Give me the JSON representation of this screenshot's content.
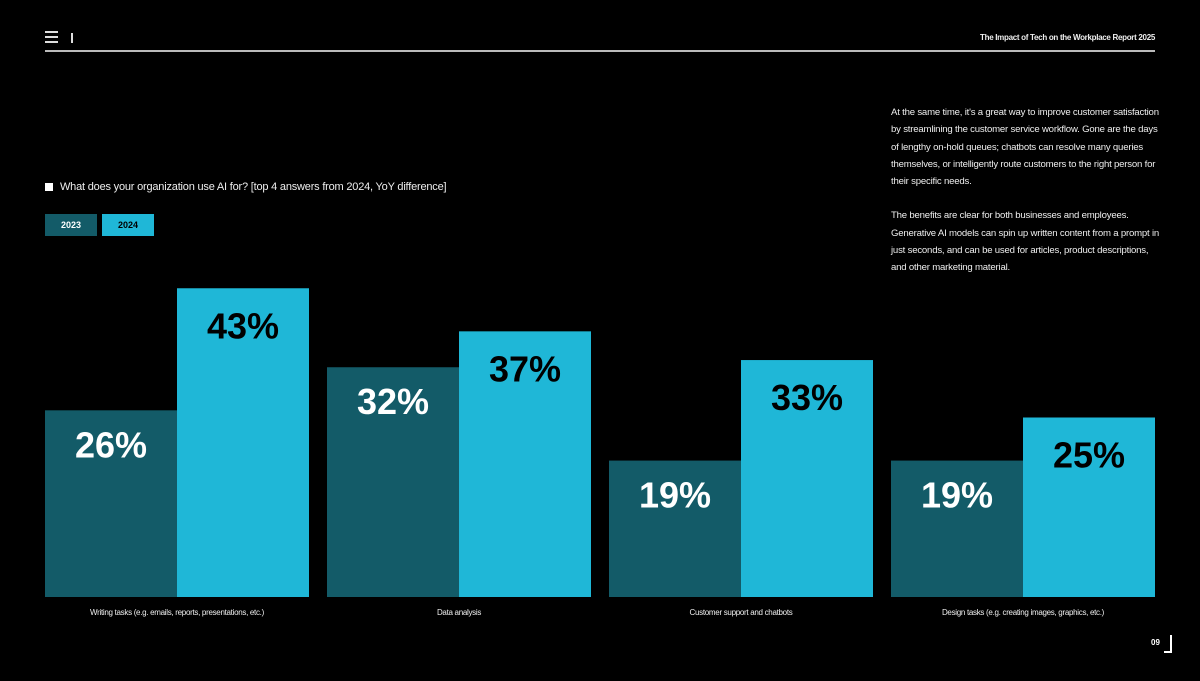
{
  "header": {
    "title": "The Impact of Tech on the Workplace Report 2025",
    "menu_icon": "hamburger-icon"
  },
  "body_text": [
    "At the same time, it's a great way to improve customer satisfaction by streamlining the customer service workflow. Gone are the days of lengthy on-hold queues; chatbots can resolve many queries themselves, or intelligently route customers to the right person for their specific needs.",
    "The benefits are clear for both businesses and employees. Generative AI models can spin up written content from a prompt in just seconds, and can be used for articles, product descriptions, and other marketing material."
  ],
  "page_number": "09",
  "chart_data": {
    "type": "bar",
    "title": "What does your organization use AI for? [top 4 answers from 2024, YoY difference]",
    "categories": [
      "Writing tasks (e.g. emails, reports, presentations, etc.)",
      "Data analysis",
      "Customer support and chatbots",
      "Design tasks (e.g. creating images, graphics, etc.)"
    ],
    "series": [
      {
        "name": "2023",
        "values": [
          26,
          32,
          19,
          19
        ],
        "color": "#135B68"
      },
      {
        "name": "2024",
        "values": [
          43,
          37,
          33,
          25
        ],
        "color": "#1FB7D7"
      }
    ],
    "value_suffix": "%",
    "legend": "top-left",
    "grid": false,
    "ylim": [
      0,
      43
    ]
  }
}
